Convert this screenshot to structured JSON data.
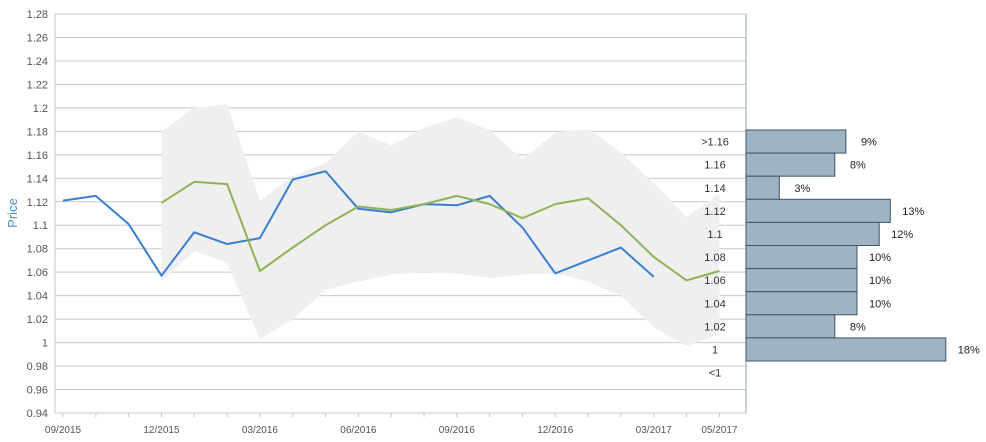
{
  "chart_data": {
    "type": "line",
    "title": "",
    "ylabel": "Price",
    "ylim": [
      0.94,
      1.28
    ],
    "yticks": [
      "0.94",
      "0.96",
      "0.98",
      "1",
      "1.02",
      "1.04",
      "1.06",
      "1.08",
      "1.1",
      "1.12",
      "1.14",
      "1.16",
      "1.18",
      "1.2",
      "1.22",
      "1.24",
      "1.26",
      "1.28"
    ],
    "x_tick_labels": [
      "09/2015",
      "12/2015",
      "03/2016",
      "06/2016",
      "09/2016",
      "12/2016",
      "03/2017",
      "05/2017"
    ],
    "series": [
      {
        "color": "#3a7fd0",
        "x": [
          "09/2015",
          "10/2015",
          "11/2015",
          "12/2015",
          "01/2016",
          "02/2016",
          "03/2016",
          "04/2016",
          "05/2016",
          "06/2016",
          "07/2016",
          "08/2016",
          "09/2016",
          "10/2016",
          "11/2016",
          "12/2016",
          "01/2017",
          "02/2017",
          "03/2017"
        ],
        "values": [
          1.121,
          1.125,
          1.101,
          1.057,
          1.094,
          1.084,
          1.089,
          1.139,
          1.146,
          1.114,
          1.111,
          1.118,
          1.117,
          1.125,
          1.098,
          1.059,
          1.07,
          1.081,
          1.056
        ]
      },
      {
        "color": "#8db356",
        "x": [
          "12/2015",
          "01/2016",
          "02/2016",
          "03/2016",
          "04/2016",
          "05/2016",
          "06/2016",
          "07/2016",
          "08/2016",
          "09/2016",
          "10/2016",
          "11/2016",
          "12/2016",
          "01/2017",
          "02/2017",
          "03/2017",
          "04/2017",
          "05/2017"
        ],
        "values": [
          1.119,
          1.137,
          1.135,
          1.061,
          1.081,
          1.1,
          1.116,
          1.113,
          1.118,
          1.125,
          1.118,
          1.106,
          1.118,
          1.123,
          1.1,
          1.073,
          1.053,
          1.061
        ]
      }
    ],
    "band": {
      "color": "#efefef",
      "x": [
        "12/2015",
        "01/2016",
        "02/2016",
        "03/2016",
        "04/2016",
        "05/2016",
        "06/2016",
        "07/2016",
        "08/2016",
        "09/2016",
        "10/2016",
        "11/2016",
        "12/2016",
        "01/2017",
        "02/2017",
        "03/2017",
        "04/2017",
        "05/2017"
      ],
      "upper": [
        1.18,
        1.2,
        1.203,
        1.121,
        1.142,
        1.153,
        1.18,
        1.168,
        1.183,
        1.192,
        1.181,
        1.156,
        1.179,
        1.182,
        1.162,
        1.136,
        1.107,
        1.127
      ],
      "lower": [
        1.052,
        1.078,
        1.068,
        1.003,
        1.02,
        1.045,
        1.052,
        1.058,
        1.06,
        1.059,
        1.055,
        1.058,
        1.059,
        1.052,
        1.04,
        1.013,
        0.997,
        1.007
      ]
    },
    "histogram": {
      "color": "#9fb3c3",
      "labels": [
        ">1.16",
        "1.16",
        "1.14",
        "1.12",
        "1.1",
        "1.08",
        "1.06",
        "1.04",
        "1.02",
        "1",
        "<1"
      ],
      "percent_labels": [
        "9%",
        "8%",
        "3%",
        "13%",
        "12%",
        "10%",
        "10%",
        "10%",
        "8%",
        "18%",
        ""
      ],
      "values": [
        9,
        8,
        3,
        13,
        12,
        10,
        10,
        10,
        8,
        18,
        0
      ]
    },
    "grid": true
  }
}
